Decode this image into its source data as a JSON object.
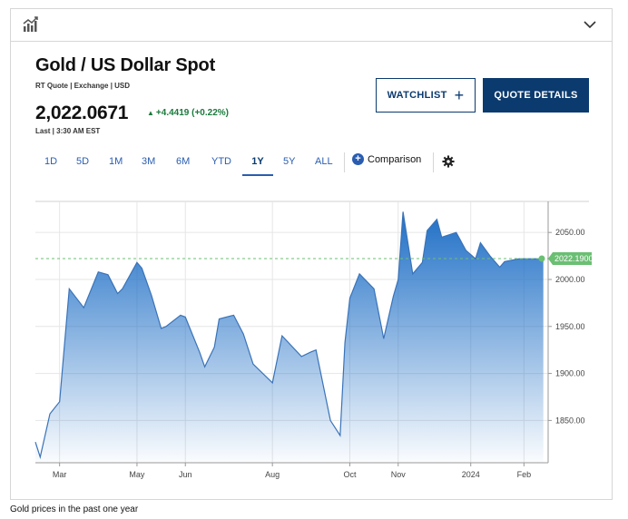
{
  "header": {
    "chart_icon": "bar-chart-icon",
    "collapse_icon": "chevron-down-icon"
  },
  "quote": {
    "title": "Gold / US Dollar Spot",
    "subtitle": "RT Quote | Exchange | USD",
    "price": "2,022.0671",
    "change": "+4.4419 (+0.22%)",
    "change_color": "#1a7a3c",
    "last": "Last | 3:30 AM EST"
  },
  "buttons": {
    "watchlist": "WATCHLIST",
    "quote_details": "QUOTE DETAILS"
  },
  "tabs": [
    {
      "label": "1D"
    },
    {
      "label": "5D"
    },
    {
      "label": "1M"
    },
    {
      "label": "3M"
    },
    {
      "label": "6M"
    },
    {
      "label": "YTD"
    },
    {
      "label": "1Y"
    },
    {
      "label": "5Y"
    },
    {
      "label": "ALL"
    }
  ],
  "active_tab": "1Y",
  "comparison_label": "Comparison",
  "caption": "Gold prices in the past one year",
  "colors": {
    "brand": "#0b3a6e",
    "link": "#2a5db0",
    "area_top": "#1f6fc6",
    "current_tag": "#6bbf73"
  },
  "chart_data": {
    "type": "area",
    "x_tick_labels": [
      "Mar",
      "May",
      "Jun",
      "Aug",
      "Oct",
      "Nov",
      "2024",
      "Feb"
    ],
    "x_tick_positions": [
      5,
      21,
      31,
      49,
      65,
      75,
      90,
      101
    ],
    "y_ticks": [
      1850,
      1900,
      1950,
      2000,
      2050
    ],
    "y_tick_labels": [
      "1850.00",
      "1900.00",
      "1950.00",
      "2000.00",
      "2050.00"
    ],
    "ylim": [
      1805,
      2083
    ],
    "xlim": [
      0,
      106
    ],
    "current_value": 2022.19,
    "current_label": "2022.1900",
    "grid": true,
    "series": [
      {
        "x": [
          0,
          1,
          3,
          5,
          7,
          10,
          13,
          15,
          17,
          18,
          21,
          22,
          24,
          26,
          27,
          30,
          31,
          34,
          35,
          37,
          38,
          41,
          43,
          45,
          49,
          51,
          55,
          57,
          58,
          61,
          63,
          64,
          65,
          67,
          70,
          72,
          74,
          75,
          76,
          78,
          80,
          81,
          83,
          84,
          87,
          89,
          91,
          92,
          94,
          96,
          97,
          100,
          101,
          103,
          105
        ],
        "y": [
          1827,
          1811,
          1857,
          1870,
          1990,
          1970,
          2008,
          2005,
          1985,
          1990,
          2018,
          2012,
          1983,
          1948,
          1950,
          1962,
          1960,
          1922,
          1907,
          1928,
          1958,
          1962,
          1942,
          1910,
          1890,
          1940,
          1918,
          1923,
          1925,
          1850,
          1834,
          1933,
          1980,
          2006,
          1990,
          1937,
          1982,
          2000,
          2072,
          2006,
          2018,
          2052,
          2064,
          2045,
          2050,
          2031,
          2022,
          2039,
          2025,
          2013,
          2019,
          2022,
          2022,
          2022,
          2022
        ]
      }
    ]
  }
}
